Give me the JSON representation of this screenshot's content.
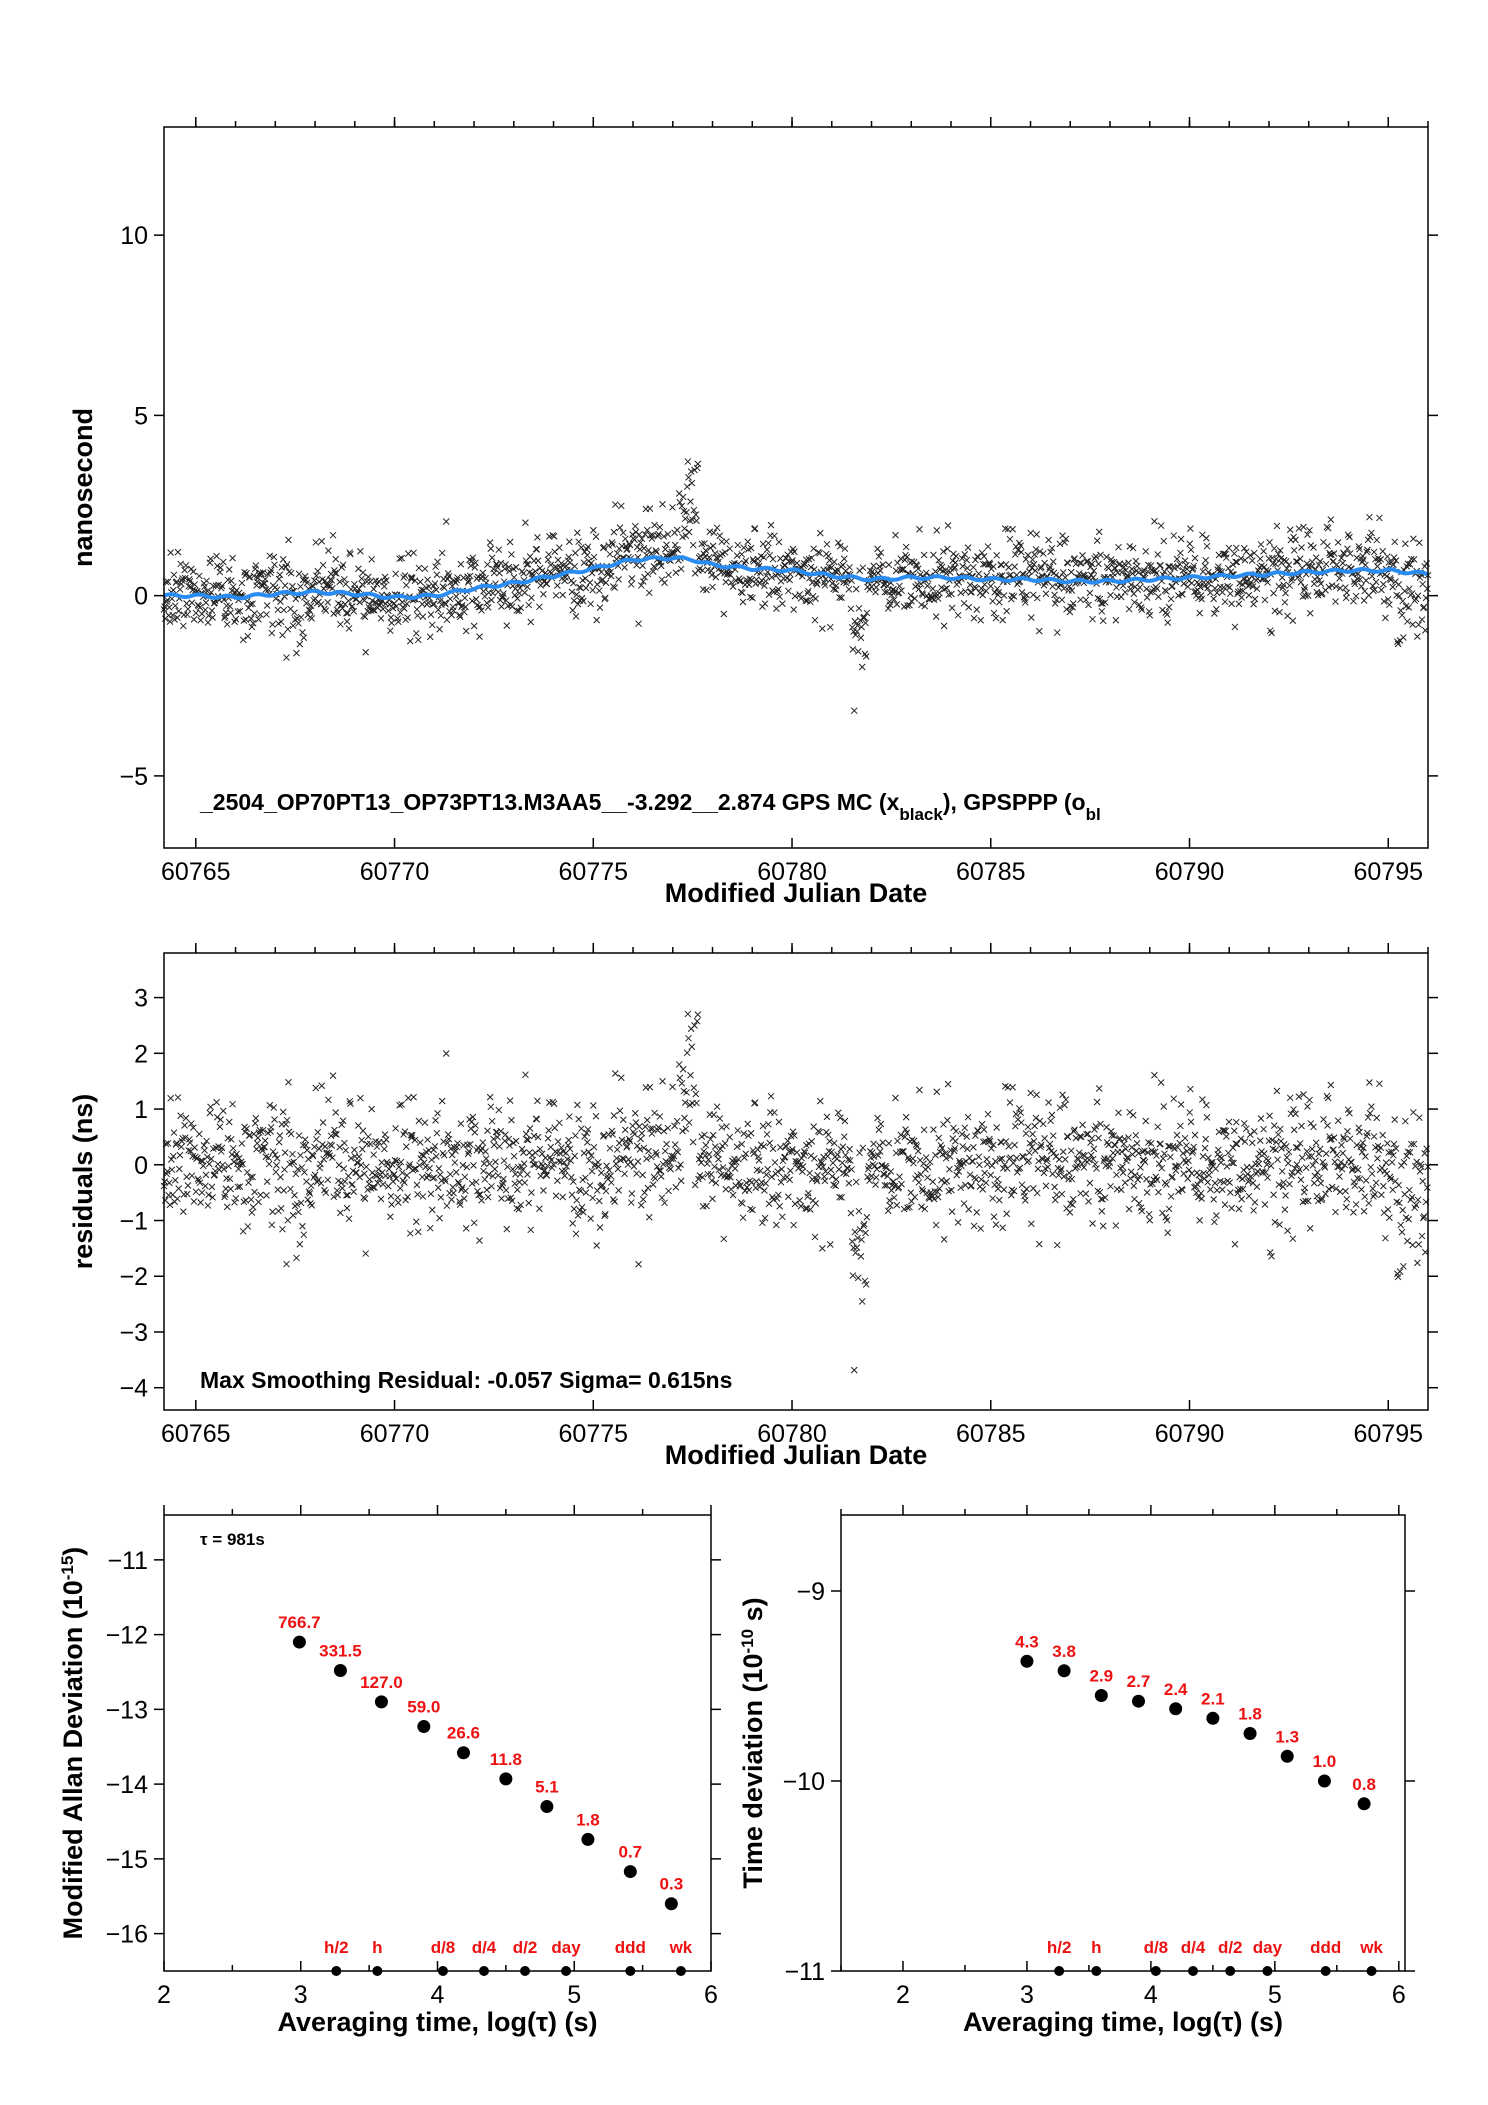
{
  "chart_data": [
    {
      "type": "scatter",
      "ylabel": "nanosecond",
      "xlabel": "Modified Julian Date",
      "xlim": [
        60764.2,
        60796
      ],
      "ylim": [
        -7,
        13
      ],
      "xticks": [
        60765,
        60770,
        60775,
        60780,
        60785,
        60790,
        60795
      ],
      "xtick_labels": [
        "60765",
        "60770",
        "60775",
        "60780",
        "60785",
        "60790",
        "60795"
      ],
      "yticks": [
        -5,
        0,
        5,
        10
      ],
      "ytick_labels": [
        "−5",
        "0",
        "5",
        "10"
      ],
      "annotation_main": "_2504_OP70PT13_OP73PT13.M3AA5__-3.292__2.874     GPS MC (x",
      "annotation_sub": "black",
      "annotation_tail": "),  GPSPPP (o",
      "annotation_tail_sub": "bl",
      "series": [
        {
          "marker": "x",
          "color": "#222222",
          "noise_sigma": 0.62
        },
        {
          "marker": "line",
          "color": "#2a8cf0",
          "x": [
            60764.2,
            60765,
            60766,
            60767,
            60768,
            60769,
            60770,
            60771,
            60772,
            60773,
            60774,
            60775,
            60776,
            60777,
            60777.5,
            60778,
            60779,
            60780,
            60781,
            60782,
            60783,
            60784,
            60785,
            60786,
            60787,
            60788,
            60789,
            60790,
            60791,
            60792,
            60793,
            60794,
            60795,
            60796
          ],
          "y": [
            0.0,
            0.0,
            -0.05,
            0.05,
            0.1,
            0.05,
            -0.05,
            0.0,
            0.2,
            0.35,
            0.55,
            0.75,
            1.0,
            1.05,
            1.0,
            0.85,
            0.75,
            0.7,
            0.55,
            0.45,
            0.5,
            0.5,
            0.45,
            0.45,
            0.4,
            0.4,
            0.45,
            0.5,
            0.55,
            0.6,
            0.65,
            0.7,
            0.7,
            0.6
          ]
        }
      ]
    },
    {
      "type": "scatter",
      "ylabel": "residuals (ns)",
      "xlabel": "Modified Julian Date",
      "xlim": [
        60764.2,
        60796
      ],
      "ylim": [
        -4.4,
        3.8
      ],
      "xticks": [
        60765,
        60770,
        60775,
        60780,
        60785,
        60790,
        60795
      ],
      "xtick_labels": [
        "60765",
        "60770",
        "60775",
        "60780",
        "60785",
        "60790",
        "60795"
      ],
      "yticks": [
        -4,
        -3,
        -2,
        -1,
        0,
        1,
        2,
        3
      ],
      "ytick_labels": [
        "−4",
        "−3",
        "−2",
        "−1",
        "0",
        "1",
        "2",
        "3"
      ],
      "annotation": "Max Smoothing Residual: -0.057  Sigma= 0.615ns",
      "series": [
        {
          "marker": "x",
          "color": "#222222",
          "sigma": 0.615
        }
      ]
    },
    {
      "type": "scatter",
      "ylabel_main": "Modified Allan Deviation (10",
      "ylabel_sup": "-15",
      "ylabel_end": ")",
      "xlabel": "Averaging time, log(τ) (s)",
      "xlim": [
        2,
        6
      ],
      "ylim": [
        -16.5,
        -10.4
      ],
      "xticks": [
        2,
        3,
        4,
        5,
        6
      ],
      "xtick_labels": [
        "2",
        "3",
        "4",
        "5",
        "6"
      ],
      "yticks": [
        -16,
        -15,
        -14,
        -13,
        -12,
        -11
      ],
      "ytick_labels": [
        "−16",
        "−15",
        "−14",
        "−13",
        "−12",
        "−11"
      ],
      "tau_note": "τ = 981s",
      "points": [
        {
          "x": 2.99,
          "y": -12.1,
          "label": "766.7"
        },
        {
          "x": 3.29,
          "y": -12.48,
          "label": "331.5"
        },
        {
          "x": 3.59,
          "y": -12.9,
          "label": "127.0"
        },
        {
          "x": 3.9,
          "y": -13.23,
          "label": "59.0"
        },
        {
          "x": 4.19,
          "y": -13.58,
          "label": "26.6"
        },
        {
          "x": 4.5,
          "y": -13.93,
          "label": "11.8"
        },
        {
          "x": 4.8,
          "y": -14.3,
          "label": "5.1"
        },
        {
          "x": 5.1,
          "y": -14.74,
          "label": "1.8"
        },
        {
          "x": 5.41,
          "y": -15.17,
          "label": "0.7"
        },
        {
          "x": 5.71,
          "y": -15.6,
          "label": "0.3"
        }
      ],
      "markers": [
        {
          "x": 3.26,
          "label": "h/2"
        },
        {
          "x": 3.56,
          "label": "h"
        },
        {
          "x": 4.04,
          "label": "d/8"
        },
        {
          "x": 4.34,
          "label": "d/4"
        },
        {
          "x": 4.64,
          "label": "d/2"
        },
        {
          "x": 4.94,
          "label": "day"
        },
        {
          "x": 5.41,
          "label": "ddd"
        },
        {
          "x": 5.78,
          "label": "wk"
        }
      ]
    },
    {
      "type": "scatter",
      "ylabel_main": "Time deviation (10",
      "ylabel_sup": "-10",
      "ylabel_end": " s)",
      "xlabel": "Averaging time, log(τ) (s)",
      "xlim": [
        1.5,
        6.05
      ],
      "ylim": [
        -11,
        -8.6
      ],
      "xticks": [
        2,
        3,
        4,
        5,
        6
      ],
      "xtick_labels": [
        "2",
        "3",
        "4",
        "5",
        "6"
      ],
      "yticks": [
        -11,
        -10,
        -9
      ],
      "ytick_labels": [
        "−11",
        "−10",
        "−9"
      ],
      "points": [
        {
          "x": 3.0,
          "y": -9.37,
          "label": "4.3"
        },
        {
          "x": 3.3,
          "y": -9.42,
          "label": "3.8"
        },
        {
          "x": 3.6,
          "y": -9.55,
          "label": "2.9"
        },
        {
          "x": 3.9,
          "y": -9.58,
          "label": "2.7"
        },
        {
          "x": 4.2,
          "y": -9.62,
          "label": "2.4"
        },
        {
          "x": 4.5,
          "y": -9.67,
          "label": "2.1"
        },
        {
          "x": 4.8,
          "y": -9.75,
          "label": "1.8"
        },
        {
          "x": 5.1,
          "y": -9.87,
          "label": "1.3"
        },
        {
          "x": 5.4,
          "y": -10.0,
          "label": "1.0"
        },
        {
          "x": 5.72,
          "y": -10.12,
          "label": "0.8"
        }
      ],
      "markers": [
        {
          "x": 3.26,
          "label": "h/2"
        },
        {
          "x": 3.56,
          "label": "h"
        },
        {
          "x": 4.04,
          "label": "d/8"
        },
        {
          "x": 4.34,
          "label": "d/4"
        },
        {
          "x": 4.64,
          "label": "d/2"
        },
        {
          "x": 4.94,
          "label": "day"
        },
        {
          "x": 5.41,
          "label": "ddd"
        },
        {
          "x": 5.78,
          "label": "wk"
        }
      ]
    }
  ]
}
